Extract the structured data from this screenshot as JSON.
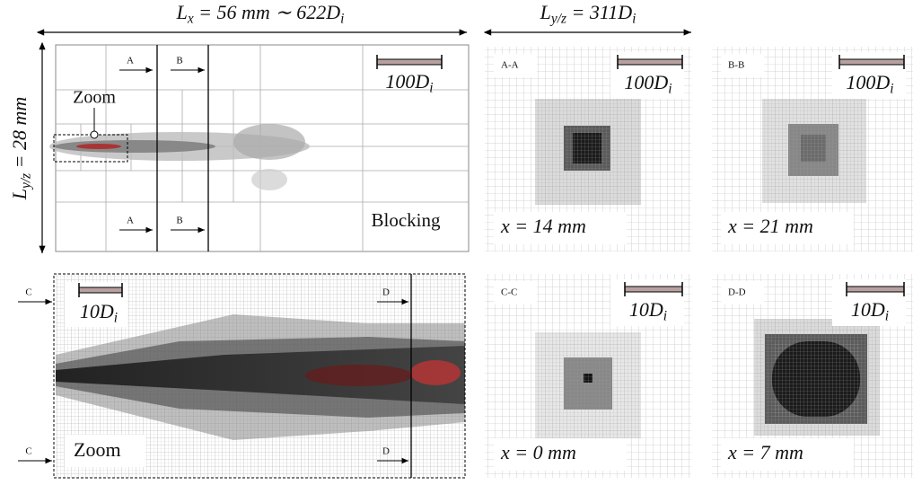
{
  "top_axis_label": [
    {
      "t": "L"
    },
    {
      "sub": "x"
    },
    {
      "t": " = 56 mm ∼ 622D"
    },
    {
      "sub": "i"
    }
  ],
  "side_axis_label": [
    {
      "t": "L"
    },
    {
      "sub": "y/z"
    },
    {
      "t": " = 28 mm"
    }
  ],
  "cross_axis_label": [
    {
      "t": "L"
    },
    {
      "sub": "y/z"
    },
    {
      "t": " = 311D"
    },
    {
      "sub": "i"
    }
  ],
  "overview": {
    "zoom_label": "Zoom",
    "scale": [
      {
        "t": "100D"
      },
      {
        "sub": "i"
      }
    ],
    "blocking": "Blocking",
    "cut_a": [
      "A",
      "A"
    ],
    "cut_b": [
      "B",
      "B"
    ]
  },
  "sections": [
    {
      "title": "A-A",
      "scale": [
        {
          "t": "100D"
        },
        {
          "sub": "i"
        }
      ],
      "position": [
        {
          "t": "x = 14 mm"
        }
      ]
    },
    {
      "title": "B-B",
      "scale": [
        {
          "t": "100D"
        },
        {
          "sub": "i"
        }
      ],
      "position": [
        {
          "t": "x = 21 mm"
        }
      ]
    },
    {
      "title": "C-C",
      "scale": [
        {
          "t": "10D"
        },
        {
          "sub": "i"
        }
      ],
      "position": [
        {
          "t": "x = 0 mm"
        }
      ]
    },
    {
      "title": "D-D",
      "scale": [
        {
          "t": "10D"
        },
        {
          "sub": "i"
        }
      ],
      "position": [
        {
          "t": "x = 7 mm"
        }
      ]
    }
  ],
  "zoom": {
    "scale": [
      {
        "t": "10D"
      },
      {
        "sub": "i"
      }
    ],
    "label": "Zoom",
    "cut_c": [
      "C",
      "C"
    ],
    "cut_d": [
      "D",
      "D"
    ]
  }
}
